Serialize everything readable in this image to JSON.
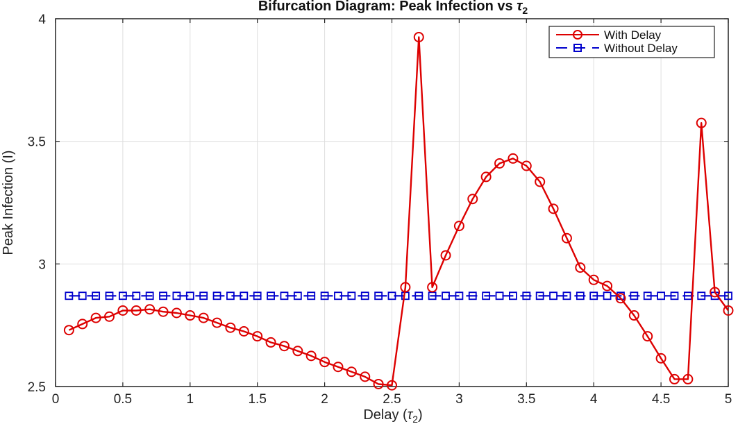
{
  "chart_data": {
    "type": "line",
    "title_prefix": "Bifurcation Diagram: Peak Infection vs ",
    "title_symbol": "τ",
    "title_subscript": "2",
    "xlabel_prefix": "Delay  (",
    "xlabel_symbol": "τ",
    "xlabel_subscript": "2",
    "xlabel_suffix": ")",
    "ylabel": "Peak Infection (I)",
    "xlim": [
      0,
      5
    ],
    "ylim": [
      2.5,
      4
    ],
    "xticks": [
      "0",
      "0.5",
      "1",
      "1.5",
      "2",
      "2.5",
      "3",
      "3.5",
      "4",
      "4.5",
      "5"
    ],
    "xtick_values": [
      0,
      0.5,
      1,
      1.5,
      2,
      2.5,
      3,
      3.5,
      4,
      4.5,
      5
    ],
    "yticks": [
      "2.5",
      "3",
      "3.5",
      "4"
    ],
    "ytick_values": [
      2.5,
      3,
      3.5,
      4
    ],
    "grid": true,
    "legend_position": "top-right",
    "x": [
      0.1,
      0.2,
      0.3,
      0.4,
      0.5,
      0.6,
      0.7,
      0.8,
      0.9,
      1.0,
      1.1,
      1.2,
      1.3,
      1.4,
      1.5,
      1.6,
      1.7,
      1.8,
      1.9,
      2.0,
      2.1,
      2.2,
      2.3,
      2.4,
      2.5,
      2.6,
      2.7,
      2.8,
      2.9,
      3.0,
      3.1,
      3.2,
      3.3,
      3.4,
      3.5,
      3.6,
      3.7,
      3.8,
      3.9,
      4.0,
      4.1,
      4.2,
      4.3,
      4.4,
      4.5,
      4.6,
      4.7,
      4.8,
      4.9,
      5.0
    ],
    "series": [
      {
        "name": "With Delay",
        "color": "#dd0000",
        "line_style": "solid",
        "marker": "circle",
        "values": [
          2.73,
          2.755,
          2.78,
          2.785,
          2.81,
          2.81,
          2.815,
          2.805,
          2.8,
          2.79,
          2.78,
          2.76,
          2.74,
          2.725,
          2.705,
          2.68,
          2.665,
          2.645,
          2.625,
          2.6,
          2.58,
          2.56,
          2.54,
          2.51,
          2.505,
          2.905,
          3.925,
          2.905,
          3.035,
          3.155,
          3.265,
          3.355,
          3.41,
          3.43,
          3.4,
          3.335,
          3.225,
          3.105,
          2.985,
          2.935,
          2.91,
          2.86,
          2.79,
          2.705,
          2.615,
          2.53,
          2.53,
          3.575,
          2.885,
          2.81
        ]
      },
      {
        "name": "Without Delay",
        "color": "#0000cc",
        "line_style": "dashed",
        "marker": "square",
        "values": [
          2.87,
          2.87,
          2.87,
          2.87,
          2.87,
          2.87,
          2.87,
          2.87,
          2.87,
          2.87,
          2.87,
          2.87,
          2.87,
          2.87,
          2.87,
          2.87,
          2.87,
          2.87,
          2.87,
          2.87,
          2.87,
          2.87,
          2.87,
          2.87,
          2.87,
          2.87,
          2.87,
          2.87,
          2.87,
          2.87,
          2.87,
          2.87,
          2.87,
          2.87,
          2.87,
          2.87,
          2.87,
          2.87,
          2.87,
          2.87,
          2.87,
          2.87,
          2.87,
          2.87,
          2.87,
          2.87,
          2.87,
          2.87,
          2.87,
          2.87
        ]
      }
    ]
  }
}
